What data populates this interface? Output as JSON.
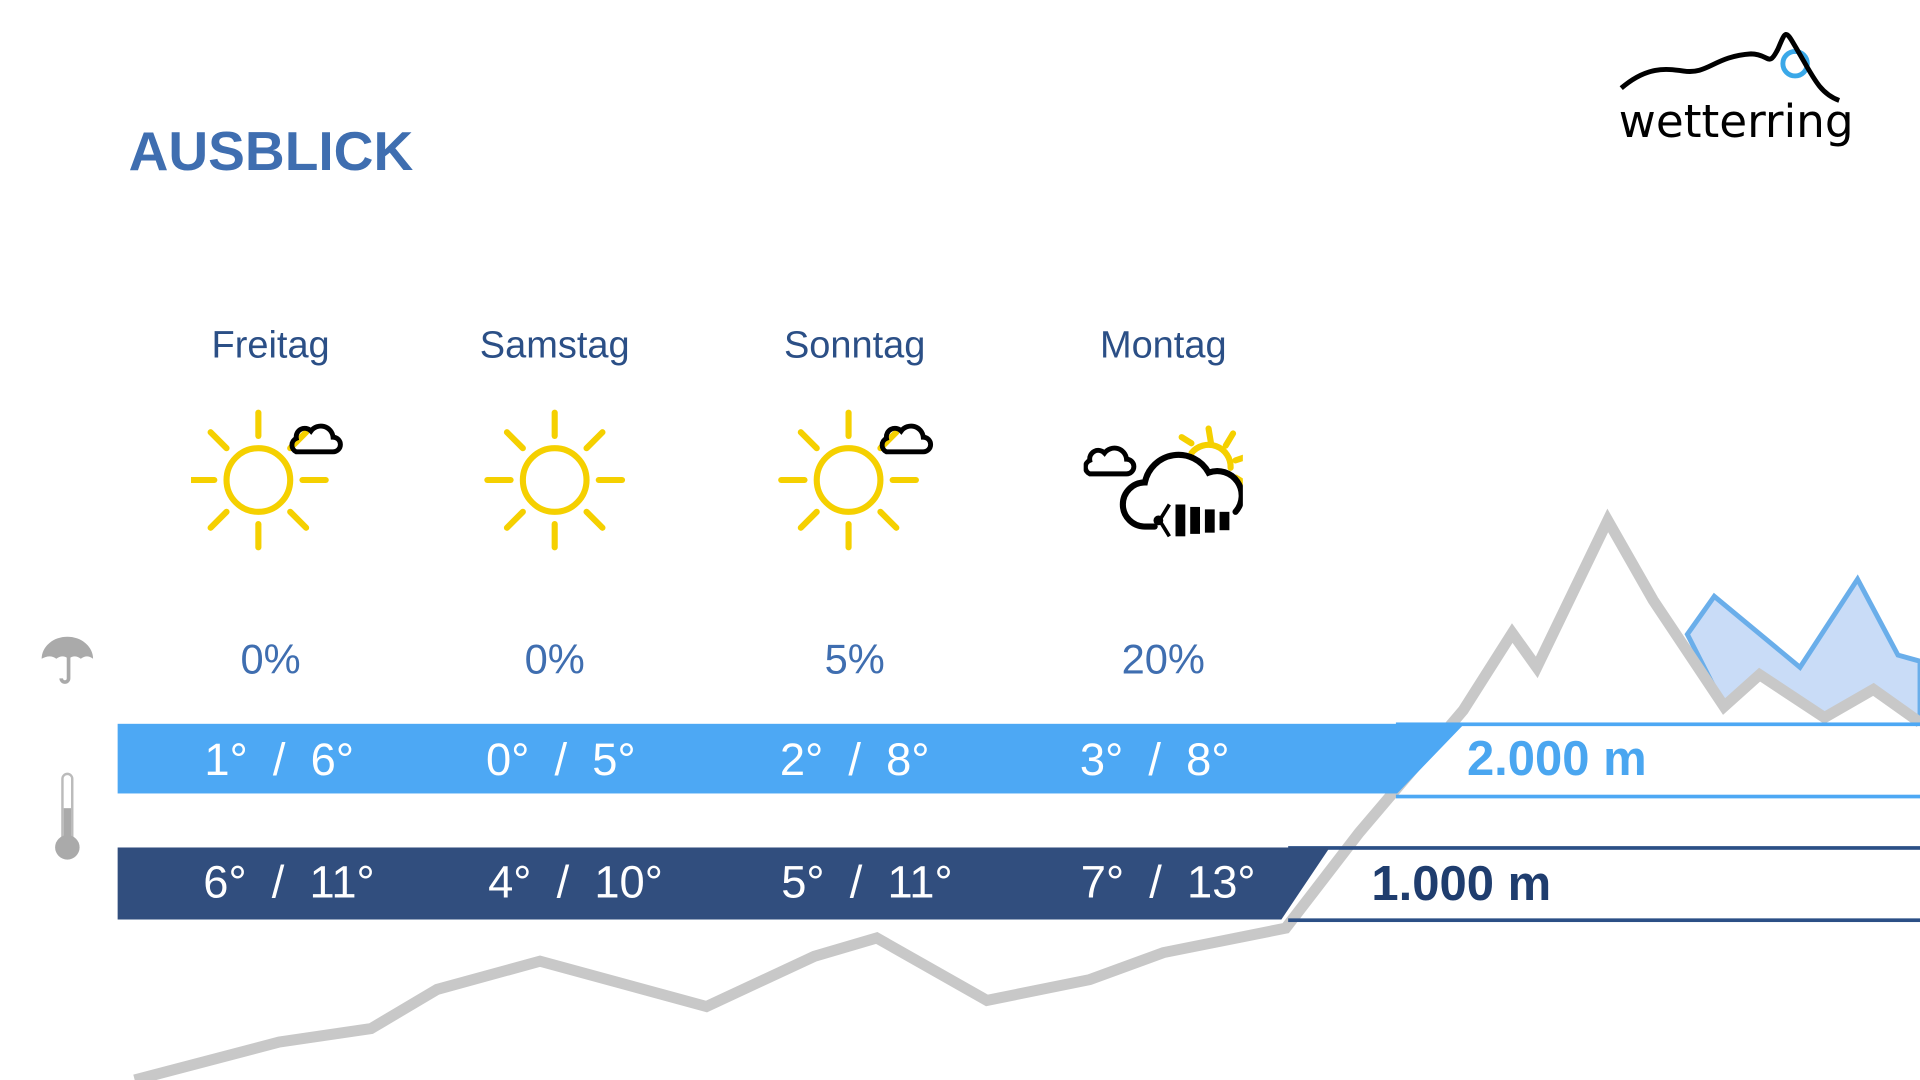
{
  "header": {
    "title": "AUSBLICK",
    "logo_text": "wetterring"
  },
  "colors": {
    "title": "#3f6eb0",
    "level_2000": "#4da8f4",
    "level_1000": "#314e7e",
    "sun": "#f5d000",
    "mountain": "#c8c8c8"
  },
  "rows": {
    "precip_icon": "umbrella-icon",
    "temp_icon": "thermometer-icon"
  },
  "days": [
    {
      "name": "Freitag",
      "icon": "sun-small-cloud-icon",
      "precip": "0%",
      "temp_2000": "1°  /  6°",
      "temp_1000": "6°  /  11°"
    },
    {
      "name": "Samstag",
      "icon": "sun-icon",
      "precip": "0%",
      "temp_2000": "0°  /  5°",
      "temp_1000": "4°  /  10°"
    },
    {
      "name": "Sonntag",
      "icon": "sun-small-cloud-icon",
      "precip": "5%",
      "temp_2000": "2°  /  8°",
      "temp_1000": "5°  /  11°"
    },
    {
      "name": "Montag",
      "icon": "cloud-sun-wind-icon",
      "precip": "20%",
      "temp_2000": "3°  /  8°",
      "temp_1000": "7°  /  13°"
    }
  ],
  "levels": {
    "high": "2.000 m",
    "low": "1.000 m"
  }
}
